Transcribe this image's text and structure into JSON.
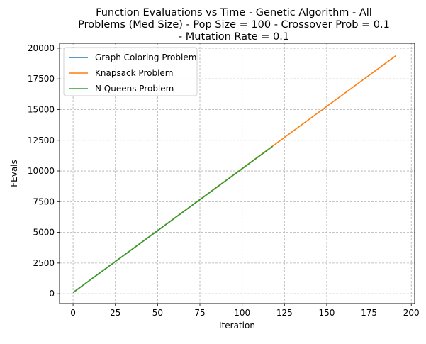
{
  "chart_data": {
    "type": "line",
    "title_lines": [
      "Function Evaluations vs Time - Genetic Algorithm - All",
      "Problems (Med Size) - Pop Size = 100 - Crossover Prob = 0.1",
      "- Mutation Rate = 0.1"
    ],
    "xlabel": "Iteration",
    "ylabel": "FEvals",
    "xlim": [
      -8,
      202
    ],
    "ylim": [
      -800,
      20400
    ],
    "xticks": [
      0,
      25,
      50,
      75,
      100,
      125,
      150,
      175,
      200
    ],
    "yticks": [
      0,
      2500,
      5000,
      7500,
      10000,
      12500,
      15000,
      17500,
      20000
    ],
    "grid": true,
    "legend_position": "upper-left",
    "series": [
      {
        "name": "Graph Coloring Problem",
        "color": "#1f77b4",
        "x": [
          0,
          117
        ],
        "y": [
          100,
          11900
        ]
      },
      {
        "name": "Knapsack Problem",
        "color": "#ff7f0e",
        "x": [
          0,
          191
        ],
        "y": [
          100,
          19400
        ]
      },
      {
        "name": "N Queens Problem",
        "color": "#2ca02c",
        "x": [
          0,
          118
        ],
        "y": [
          100,
          12000
        ]
      }
    ]
  }
}
